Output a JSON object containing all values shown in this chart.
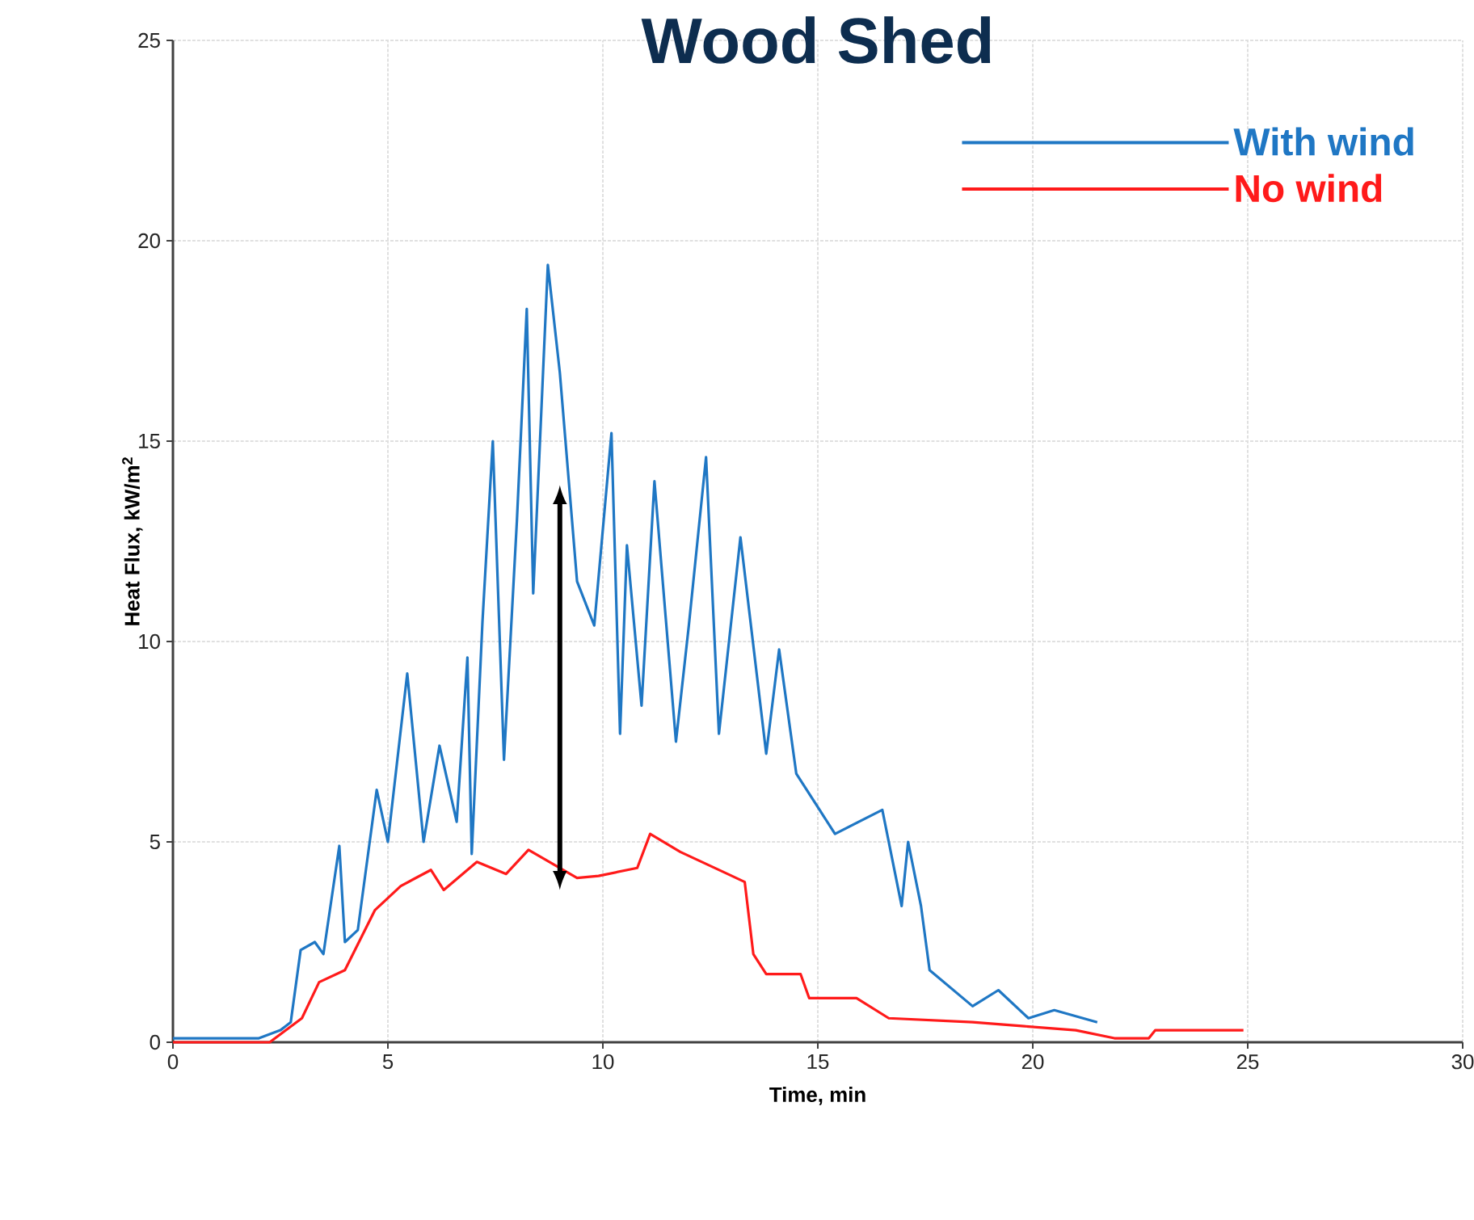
{
  "chart_data": {
    "type": "line",
    "title": "Wood Shed",
    "xlabel": "Time, min",
    "ylabel": "Heat Flux, kW/m$^{2}$",
    "xlim": [
      0,
      30
    ],
    "ylim": [
      0,
      25
    ],
    "xticks": [
      0,
      5,
      10,
      15,
      20,
      25,
      30
    ],
    "yticks": [
      0,
      5,
      10,
      15,
      20,
      25
    ],
    "grid": true,
    "legend": "top right",
    "line_style": "solid",
    "marker": "none",
    "series": [
      {
        "name": "With wind",
        "color": "#1f77c4",
        "x": [
          0,
          1,
          2,
          2.5,
          2.74,
          2.97,
          3.3,
          3.5,
          3.87,
          4.0,
          4.3,
          4.74,
          5.0,
          5.45,
          5.83,
          6.2,
          6.6,
          6.85,
          6.95,
          7.2,
          7.44,
          7.7,
          8.0,
          8.23,
          8.38,
          8.72,
          9.0,
          9.4,
          9.8,
          10.2,
          10.4,
          10.56,
          10.9,
          11.2,
          11.7,
          12.0,
          12.4,
          12.7,
          13.2,
          13.8,
          14.1,
          14.5,
          15.4,
          16.5,
          16.95,
          17.1,
          17.4,
          17.6,
          18.6,
          19.2,
          19.9,
          20.5,
          21.5
        ],
        "values": [
          0.1,
          0.1,
          0.1,
          0.3,
          0.5,
          2.3,
          2.5,
          2.2,
          4.9,
          2.5,
          2.8,
          6.3,
          5.0,
          9.2,
          5.0,
          7.4,
          5.5,
          9.6,
          4.7,
          10.5,
          15.0,
          7.05,
          13.0,
          18.3,
          11.2,
          19.4,
          16.7,
          11.5,
          10.4,
          15.2,
          7.7,
          12.4,
          8.4,
          14.0,
          7.5,
          10.4,
          14.6,
          7.7,
          12.6,
          7.2,
          9.8,
          6.7,
          5.2,
          5.8,
          3.4,
          5.0,
          3.4,
          1.8,
          0.9,
          1.3,
          0.6,
          0.8,
          0.5
        ]
      },
      {
        "name": "No wind",
        "color": "#ff1a1a",
        "x": [
          0,
          1,
          2.25,
          3.0,
          3.4,
          4.0,
          4.7,
          5.3,
          6.0,
          6.3,
          7.07,
          7.75,
          8.27,
          9.4,
          9.9,
          10.8,
          11.1,
          11.8,
          12.9,
          13.3,
          13.5,
          13.8,
          14.6,
          14.8,
          15.9,
          16.65,
          18.6,
          19.8,
          21.0,
          21.9,
          22.7,
          22.85,
          24.9
        ],
        "values": [
          0,
          0,
          0,
          0.6,
          1.5,
          1.8,
          3.3,
          3.9,
          4.3,
          3.8,
          4.5,
          4.2,
          4.8,
          4.1,
          4.15,
          4.35,
          5.2,
          4.75,
          4.2,
          4.0,
          2.2,
          1.7,
          1.7,
          1.1,
          1.1,
          0.6,
          0.5,
          0.4,
          0.3,
          0.1,
          0.1,
          0.3,
          0.3
        ]
      }
    ]
  }
}
